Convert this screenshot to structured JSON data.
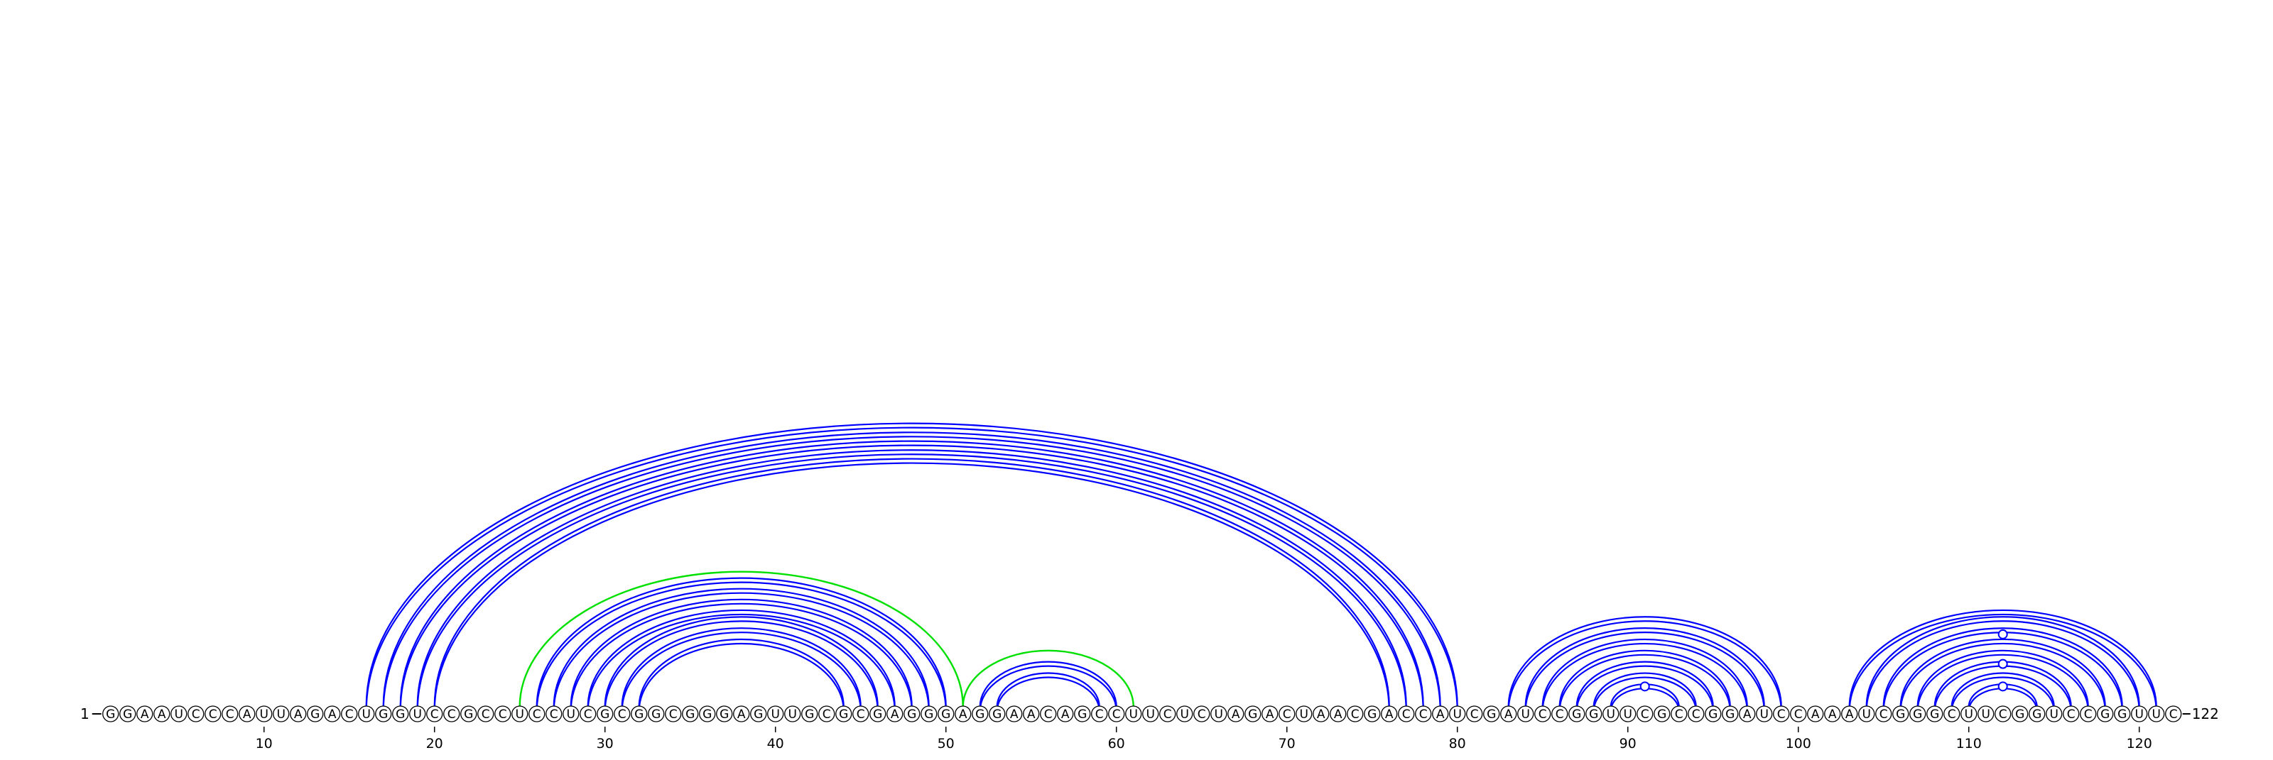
{
  "sequence": "GGAAUCCCAUUAGACUGGUCCGCCUCCUCGCGGCGGGAGUUGCGCGAGGGAGGAACAGCCUUCUCUAGACUAACGACCAUCGAUCCGGUUCGCCGGAUCCAAAUCGGGCUUCGGUCCGGUUC",
  "start_label": "1",
  "end_label": "122",
  "tick_labels": [
    "10",
    "20",
    "30",
    "40",
    "50",
    "60",
    "70",
    "80",
    "90",
    "100",
    "110",
    "120"
  ],
  "colors": {
    "pair": "#0000ff",
    "pseudo": "#00e000",
    "base_fill": "#ffffff",
    "base_stroke": "#000000"
  },
  "pairs": [
    [
      16,
      80
    ],
    [
      17,
      79
    ],
    [
      18,
      78
    ],
    [
      19,
      77
    ],
    [
      20,
      76
    ],
    [
      26,
      50
    ],
    [
      27,
      49
    ],
    [
      28,
      48
    ],
    [
      29,
      47
    ],
    [
      30,
      46
    ],
    [
      31,
      45
    ],
    [
      32,
      44
    ],
    [
      52,
      60
    ],
    [
      53,
      59
    ],
    [
      83,
      99
    ],
    [
      84,
      98
    ],
    [
      85,
      97
    ],
    [
      86,
      96
    ],
    [
      87,
      95
    ],
    [
      88,
      94
    ],
    [
      89,
      93
    ],
    [
      103,
      121
    ],
    [
      104,
      120
    ],
    [
      105,
      119
    ],
    [
      106,
      118
    ],
    [
      107,
      117
    ],
    [
      108,
      116
    ],
    [
      109,
      115
    ],
    [
      110,
      114
    ]
  ],
  "pseudo_pairs": [
    [
      25,
      51
    ],
    [
      51,
      61
    ]
  ],
  "marker_arcs": [
    [
      110,
      114
    ],
    [
      108,
      116
    ],
    [
      89,
      93
    ]
  ],
  "marker_top": [
    [
      103,
      121
    ]
  ]
}
